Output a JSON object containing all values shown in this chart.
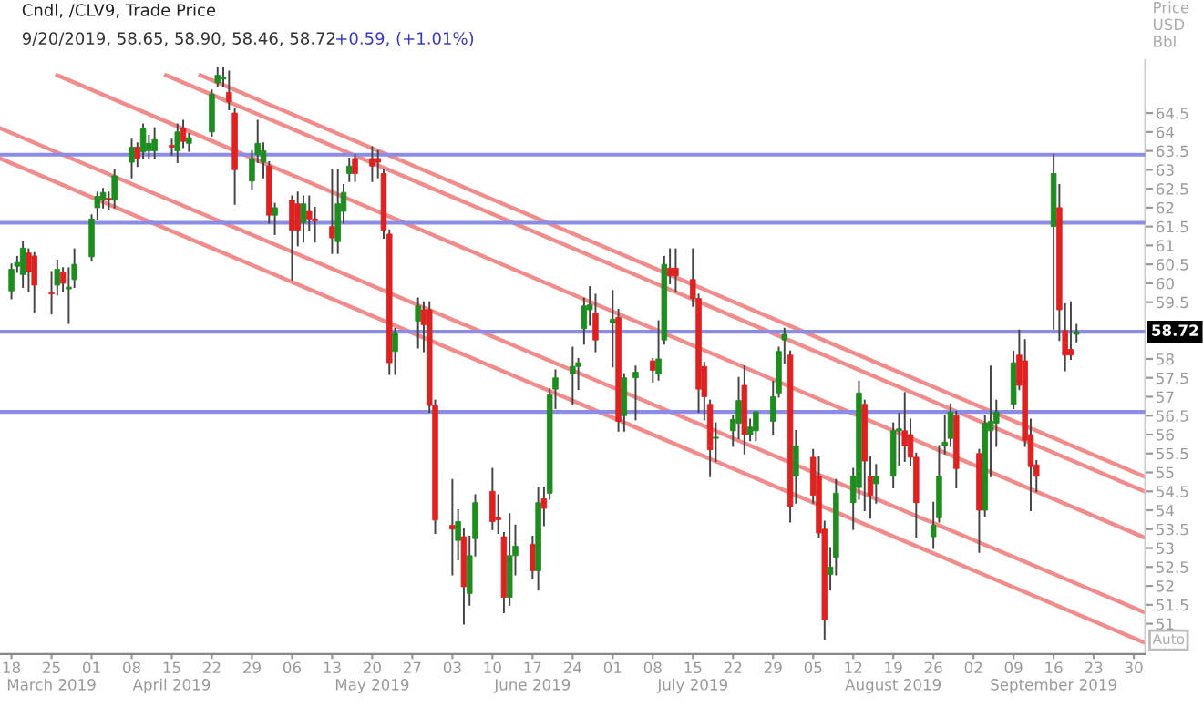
{
  "chart_data": {
    "type": "candlestick",
    "title": "Cndl, /CLV9, Trade Price",
    "subtitle": "9/20/2019, 58.65, 58.90, 58.46, 58.72",
    "ylabel": "Price\nUSD\nBbl",
    "annotations": [
      "+0.59, (+1.01%)",
      "Auto"
    ],
    "x": [
      "2019-03-18",
      "2019-03-19",
      "2019-03-20",
      "2019-03-21",
      "2019-03-22",
      "2019-03-25",
      "2019-03-26",
      "2019-03-27",
      "2019-03-28",
      "2019-03-29",
      "2019-04-01",
      "2019-04-02",
      "2019-04-03",
      "2019-04-04",
      "2019-04-05",
      "2019-04-08",
      "2019-04-09",
      "2019-04-10",
      "2019-04-11",
      "2019-04-12",
      "2019-04-15",
      "2019-04-16",
      "2019-04-17",
      "2019-04-18",
      "2019-04-22",
      "2019-04-23",
      "2019-04-24",
      "2019-04-25",
      "2019-04-26",
      "2019-04-29",
      "2019-04-30",
      "2019-05-01",
      "2019-05-02",
      "2019-05-03",
      "2019-05-06",
      "2019-05-07",
      "2019-05-08",
      "2019-05-09",
      "2019-05-10",
      "2019-05-13",
      "2019-05-14",
      "2019-05-15",
      "2019-05-16",
      "2019-05-17",
      "2019-05-20",
      "2019-05-21",
      "2019-05-22",
      "2019-05-23",
      "2019-05-24",
      "2019-05-28",
      "2019-05-29",
      "2019-05-30",
      "2019-05-31",
      "2019-06-03",
      "2019-06-04",
      "2019-06-05",
      "2019-06-06",
      "2019-06-07",
      "2019-06-10",
      "2019-06-11",
      "2019-06-12",
      "2019-06-13",
      "2019-06-14",
      "2019-06-17",
      "2019-06-18",
      "2019-06-19",
      "2019-06-20",
      "2019-06-21",
      "2019-06-24",
      "2019-06-25",
      "2019-06-26",
      "2019-06-27",
      "2019-06-28",
      "2019-07-01",
      "2019-07-02",
      "2019-07-03",
      "2019-07-05",
      "2019-07-08",
      "2019-07-09",
      "2019-07-10",
      "2019-07-11",
      "2019-07-12",
      "2019-07-15",
      "2019-07-16",
      "2019-07-17",
      "2019-07-18",
      "2019-07-19",
      "2019-07-22",
      "2019-07-23",
      "2019-07-24",
      "2019-07-25",
      "2019-07-26",
      "2019-07-29",
      "2019-07-30",
      "2019-07-31",
      "2019-08-01",
      "2019-08-02",
      "2019-08-05",
      "2019-08-06",
      "2019-08-07",
      "2019-08-08",
      "2019-08-09",
      "2019-08-12",
      "2019-08-13",
      "2019-08-14",
      "2019-08-15",
      "2019-08-16",
      "2019-08-19",
      "2019-08-20",
      "2019-08-21",
      "2019-08-22",
      "2019-08-23",
      "2019-08-26",
      "2019-08-27",
      "2019-08-28",
      "2019-08-29",
      "2019-08-30",
      "2019-09-03",
      "2019-09-04",
      "2019-09-05",
      "2019-09-06",
      "2019-09-09",
      "2019-09-10",
      "2019-09-11",
      "2019-09-12",
      "2019-09-13",
      "2019-09-16",
      "2019-09-17",
      "2019-09-18",
      "2019-09-19",
      "2019-09-20"
    ],
    "ohlc": [
      [
        59.8,
        60.5,
        59.6,
        60.37
      ],
      [
        60.45,
        60.7,
        60.3,
        60.55
      ],
      [
        60.23,
        61.1,
        59.9,
        60.93
      ],
      [
        60.8,
        60.9,
        59.8,
        60.3
      ],
      [
        60.72,
        60.8,
        59.24,
        59.95
      ],
      [
        59.75,
        60.3,
        59.2,
        59.72
      ],
      [
        59.95,
        60.6,
        59.7,
        60.37
      ],
      [
        60.3,
        60.4,
        59.8,
        60.0
      ],
      [
        59.85,
        60.4,
        58.95,
        59.9
      ],
      [
        60.1,
        60.9,
        59.9,
        60.5
      ],
      [
        60.7,
        61.8,
        60.6,
        61.7
      ],
      [
        62.0,
        62.4,
        61.7,
        62.3
      ],
      [
        62.2,
        62.5,
        62.0,
        62.4
      ],
      [
        62.25,
        62.4,
        61.95,
        62.2
      ],
      [
        62.2,
        63.0,
        62.0,
        62.84
      ],
      [
        63.2,
        63.8,
        62.8,
        63.6
      ],
      [
        63.6,
        63.7,
        63.1,
        63.3
      ],
      [
        63.47,
        64.2,
        63.3,
        64.1
      ],
      [
        63.5,
        63.9,
        63.3,
        63.7
      ],
      [
        63.5,
        64.1,
        63.3,
        63.8
      ],
      [
        63.65,
        63.8,
        63.4,
        63.6
      ],
      [
        63.5,
        64.2,
        63.2,
        64.0
      ],
      [
        64.1,
        64.3,
        63.6,
        63.75
      ],
      [
        63.7,
        63.95,
        63.5,
        63.85
      ],
      [
        64.0,
        65.1,
        63.9,
        65.0
      ],
      [
        65.3,
        65.7,
        65.2,
        65.5
      ],
      [
        65.4,
        65.7,
        65.2,
        65.45
      ],
      [
        65.05,
        65.6,
        64.6,
        64.8
      ],
      [
        64.5,
        64.6,
        62.1,
        63.0
      ],
      [
        62.7,
        63.5,
        62.5,
        63.3
      ],
      [
        63.4,
        64.3,
        63.2,
        63.7
      ],
      [
        63.2,
        63.7,
        62.8,
        63.5
      ],
      [
        63.1,
        63.2,
        61.6,
        61.8
      ],
      [
        61.8,
        62.1,
        61.3,
        62.0
      ],
      [
        62.2,
        62.3,
        60.1,
        61.4
      ],
      [
        62.1,
        62.4,
        61.0,
        61.4
      ],
      [
        61.6,
        62.3,
        61.1,
        62.1
      ],
      [
        61.9,
        62.3,
        61.4,
        61.7
      ],
      [
        61.7,
        62.0,
        61.1,
        61.65
      ],
      [
        61.5,
        63.0,
        60.8,
        61.2
      ],
      [
        61.1,
        63.0,
        60.8,
        62.1
      ],
      [
        61.9,
        62.6,
        61.6,
        62.4
      ],
      [
        62.9,
        63.3,
        62.7,
        63.1
      ],
      [
        63.3,
        63.4,
        62.7,
        62.9
      ],
      [
        63.3,
        63.6,
        62.7,
        63.1
      ],
      [
        63.3,
        63.5,
        62.8,
        63.2
      ],
      [
        62.9,
        63.0,
        61.2,
        61.4
      ],
      [
        61.3,
        61.4,
        57.6,
        57.9
      ],
      [
        58.2,
        58.8,
        57.6,
        58.7
      ],
      [
        59.0,
        59.6,
        58.3,
        59.4
      ],
      [
        59.3,
        59.5,
        58.2,
        58.9
      ],
      [
        59.3,
        59.5,
        56.6,
        56.77
      ],
      [
        56.77,
        56.9,
        53.4,
        53.74
      ],
      [
        53.6,
        54.8,
        52.3,
        53.5
      ],
      [
        53.2,
        54.0,
        52.7,
        53.7
      ],
      [
        53.3,
        53.5,
        51.0,
        51.98
      ],
      [
        51.8,
        53.3,
        51.5,
        52.8
      ],
      [
        53.25,
        54.4,
        52.8,
        54.2
      ],
      [
        54.5,
        55.1,
        53.5,
        53.7
      ],
      [
        53.8,
        54.4,
        53.4,
        53.75
      ],
      [
        53.3,
        53.4,
        51.3,
        51.7
      ],
      [
        51.7,
        53.9,
        51.5,
        52.8
      ],
      [
        52.8,
        53.6,
        52.3,
        53.05
      ],
      [
        53.1,
        53.3,
        52.2,
        52.4
      ],
      [
        52.4,
        54.6,
        51.9,
        54.2
      ],
      [
        54.3,
        54.6,
        53.6,
        54.05
      ],
      [
        54.45,
        57.2,
        54.3,
        57.05
      ],
      [
        57.2,
        57.7,
        56.7,
        57.5
      ],
      [
        57.6,
        58.3,
        56.8,
        57.8
      ],
      [
        57.8,
        58.0,
        57.2,
        57.9
      ],
      [
        58.8,
        59.6,
        58.4,
        59.4
      ],
      [
        59.3,
        59.9,
        58.9,
        59.43
      ],
      [
        59.2,
        59.7,
        58.2,
        58.5
      ],
      [
        58.95,
        59.8,
        57.8,
        59.05
      ],
      [
        59.1,
        59.3,
        56.1,
        56.35
      ],
      [
        56.5,
        57.6,
        56.1,
        57.5
      ],
      [
        57.5,
        57.8,
        56.4,
        57.65
      ],
      [
        57.95,
        58.0,
        57.4,
        57.7
      ],
      [
        57.6,
        59.0,
        57.45,
        58.0
      ],
      [
        58.5,
        60.7,
        58.4,
        60.5
      ],
      [
        60.4,
        60.9,
        60.0,
        60.2
      ],
      [
        60.4,
        60.9,
        59.8,
        60.2
      ],
      [
        60.1,
        60.9,
        59.4,
        59.6
      ],
      [
        59.6,
        59.7,
        56.6,
        57.2
      ],
      [
        57.8,
        57.9,
        56.4,
        57.0
      ],
      [
        56.8,
        56.9,
        54.9,
        55.6
      ],
      [
        55.9,
        56.3,
        55.3,
        55.9
      ],
      [
        56.1,
        56.5,
        55.7,
        56.4
      ],
      [
        56.3,
        57.5,
        55.9,
        56.9
      ],
      [
        57.3,
        57.8,
        55.5,
        56.0
      ],
      [
        56.0,
        56.4,
        55.85,
        56.2
      ],
      [
        56.1,
        56.6,
        55.85,
        56.6
      ],
      [
        56.35,
        57.4,
        56.0,
        57.0
      ],
      [
        57.1,
        58.3,
        57.0,
        58.2
      ],
      [
        58.5,
        58.8,
        57.9,
        58.65
      ],
      [
        58.1,
        58.2,
        53.7,
        54.1
      ],
      [
        54.9,
        56.1,
        54.2,
        55.7
      ],
      [
        55.4,
        55.6,
        54.2,
        54.4
      ],
      [
        54.9,
        55.4,
        53.3,
        53.4
      ],
      [
        53.5,
        53.7,
        50.6,
        51.1
      ],
      [
        52.3,
        53.0,
        51.9,
        52.5
      ],
      [
        52.75,
        54.8,
        52.3,
        54.45
      ],
      [
        54.2,
        55.1,
        53.5,
        54.9
      ],
      [
        54.6,
        57.4,
        54.3,
        57.1
      ],
      [
        56.8,
        56.9,
        54.0,
        55.3
      ],
      [
        54.9,
        55.4,
        53.8,
        54.4
      ],
      [
        54.7,
        55.2,
        54.2,
        54.9
      ],
      [
        54.9,
        56.3,
        54.6,
        56.1
      ],
      [
        56.1,
        56.55,
        55.2,
        56.15
      ],
      [
        56.1,
        57.1,
        55.3,
        55.7
      ],
      [
        56.0,
        56.4,
        55.2,
        55.4
      ],
      [
        55.4,
        55.5,
        53.3,
        54.2
      ],
      [
        53.3,
        54.2,
        53.0,
        53.6
      ],
      [
        53.8,
        55.7,
        53.7,
        54.9
      ],
      [
        55.7,
        56.5,
        55.5,
        55.8
      ],
      [
        55.9,
        56.8,
        55.7,
        56.6
      ],
      [
        56.5,
        56.6,
        54.6,
        55.1
      ],
      [
        55.5,
        55.6,
        52.9,
        54.0
      ],
      [
        54.0,
        56.5,
        53.85,
        56.3
      ],
      [
        56.1,
        57.8,
        54.9,
        56.35
      ],
      [
        56.3,
        56.9,
        55.7,
        56.6
      ],
      [
        56.8,
        58.2,
        56.7,
        57.9
      ],
      [
        58.1,
        58.75,
        57.2,
        57.3
      ],
      [
        57.95,
        58.5,
        55.7,
        55.85
      ],
      [
        56.0,
        56.4,
        54.0,
        55.15
      ],
      [
        55.2,
        55.3,
        54.5,
        54.9
      ],
      [
        61.5,
        63.4,
        58.8,
        62.9
      ],
      [
        62.0,
        62.6,
        58.5,
        59.3
      ],
      [
        58.75,
        59.45,
        57.7,
        58.1
      ],
      [
        58.25,
        59.5,
        58.0,
        58.1
      ],
      [
        58.65,
        58.9,
        58.46,
        58.72
      ]
    ],
    "series": [
      {
        "type": "line",
        "color": "#f08c8c",
        "x": [
          "2019-04-20",
          "2019-10-02"
        ],
        "values": [
          65.5,
          54.88
        ]
      },
      {
        "type": "line",
        "color": "#f08c8c",
        "x": [
          "2019-04-14",
          "2019-10-02"
        ],
        "values": [
          65.5,
          54.49
        ]
      },
      {
        "type": "line",
        "color": "#f08c8c",
        "x": [
          "2019-03-26",
          "2019-10-02"
        ],
        "values": [
          65.5,
          53.27
        ]
      },
      {
        "type": "line",
        "color": "#f08c8c",
        "x": [
          "2019-03-16",
          "2019-10-02"
        ],
        "values": [
          64.1,
          51.29
        ]
      },
      {
        "type": "line",
        "color": "#f08c8c",
        "x": [
          "2019-03-16",
          "2019-10-02"
        ],
        "values": [
          63.3,
          50.49
        ]
      }
    ],
    "ref_lines": [
      {
        "axis": "y",
        "value": 63.4,
        "color": "#8c8ce6"
      },
      {
        "axis": "y",
        "value": 61.6,
        "color": "#8c8ce6"
      },
      {
        "axis": "y",
        "value": 58.72,
        "label": "58.72",
        "color": "#8c8ce6"
      },
      {
        "axis": "y",
        "value": 56.6,
        "color": "#8c8ce6"
      }
    ],
    "xlim": [
      "2019-03-16",
      "2019-10-02"
    ],
    "xticks": [
      {
        "value": "2019-03-18",
        "label": "18"
      },
      {
        "value": "2019-03-25",
        "label": "25\nMarch 2019"
      },
      {
        "value": "2019-04-01",
        "label": "01"
      },
      {
        "value": "2019-04-08",
        "label": "08"
      },
      {
        "value": "2019-04-15",
        "label": "15\nApril 2019"
      },
      {
        "value": "2019-04-22",
        "label": "22"
      },
      {
        "value": "2019-04-29",
        "label": "29"
      },
      {
        "value": "2019-05-06",
        "label": "06"
      },
      {
        "value": "2019-05-13",
        "label": "13"
      },
      {
        "value": "2019-05-20",
        "label": "20\nMay 2019"
      },
      {
        "value": "2019-05-27",
        "label": "27"
      },
      {
        "value": "2019-06-03",
        "label": "03"
      },
      {
        "value": "2019-06-10",
        "label": "10"
      },
      {
        "value": "2019-06-17",
        "label": "17\nJune 2019"
      },
      {
        "value": "2019-06-24",
        "label": "24"
      },
      {
        "value": "2019-07-01",
        "label": "01"
      },
      {
        "value": "2019-07-08",
        "label": "08"
      },
      {
        "value": "2019-07-15",
        "label": "15\nJuly 2019"
      },
      {
        "value": "2019-07-22",
        "label": "22"
      },
      {
        "value": "2019-07-29",
        "label": "29"
      },
      {
        "value": "2019-08-05",
        "label": "05"
      },
      {
        "value": "2019-08-12",
        "label": "12"
      },
      {
        "value": "2019-08-19",
        "label": "19\nAugust 2019"
      },
      {
        "value": "2019-08-26",
        "label": "26"
      },
      {
        "value": "2019-09-02",
        "label": "02"
      },
      {
        "value": "2019-09-09",
        "label": "09"
      },
      {
        "value": "2019-09-16",
        "label": "16\nSeptember 2019"
      },
      {
        "value": "2019-09-23",
        "label": "23"
      },
      {
        "value": "2019-09-30",
        "label": "30"
      }
    ],
    "ylim": [
      50.2,
      65.9
    ],
    "yticks": [
      51,
      51.5,
      52,
      52.5,
      53,
      53.5,
      54,
      54.5,
      55,
      55.5,
      56,
      56.5,
      57,
      57.5,
      58,
      59.5,
      60,
      60.5,
      61,
      61.5,
      62,
      62.5,
      63,
      63.5,
      64,
      64.5
    ],
    "grid": false,
    "legend": false
  }
}
